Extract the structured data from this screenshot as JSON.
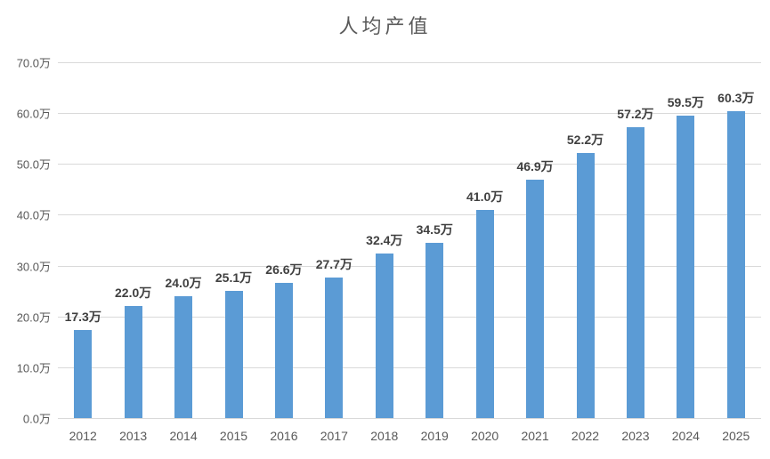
{
  "chart_data": {
    "type": "bar",
    "title": "人均产值",
    "categories": [
      "2012",
      "2013",
      "2014",
      "2015",
      "2016",
      "2017",
      "2018",
      "2019",
      "2020",
      "2021",
      "2022",
      "2023",
      "2024",
      "2025"
    ],
    "values": [
      17.3,
      22.0,
      24.0,
      25.1,
      26.6,
      27.7,
      32.4,
      34.5,
      41.0,
      46.9,
      52.2,
      57.2,
      59.5,
      60.3
    ],
    "data_labels": [
      "17.3万",
      "22.0万",
      "24.0万",
      "25.1万",
      "26.6万",
      "27.7万",
      "32.4万",
      "34.5万",
      "41.0万",
      "46.9万",
      "52.2万",
      "57.2万",
      "59.5万",
      "60.3万"
    ],
    "y_ticks": [
      {
        "value": 0,
        "label": "0.0万"
      },
      {
        "value": 10,
        "label": "10.0万"
      },
      {
        "value": 20,
        "label": "20.0万"
      },
      {
        "value": 30,
        "label": "30.0万"
      },
      {
        "value": 40,
        "label": "40.0万"
      },
      {
        "value": 50,
        "label": "50.0万"
      },
      {
        "value": 60,
        "label": "60.0万"
      },
      {
        "value": 70,
        "label": "70.0万"
      }
    ],
    "ylim": [
      0,
      70
    ],
    "xlabel": "",
    "ylabel": "",
    "grid": true,
    "legend": false,
    "colors": {
      "bar": "#5B9BD5",
      "gridline": "#D9D9D9",
      "axis_text": "#595959",
      "data_label_text": "#404040",
      "title_text": "#595959",
      "background": "#FFFFFF"
    }
  }
}
